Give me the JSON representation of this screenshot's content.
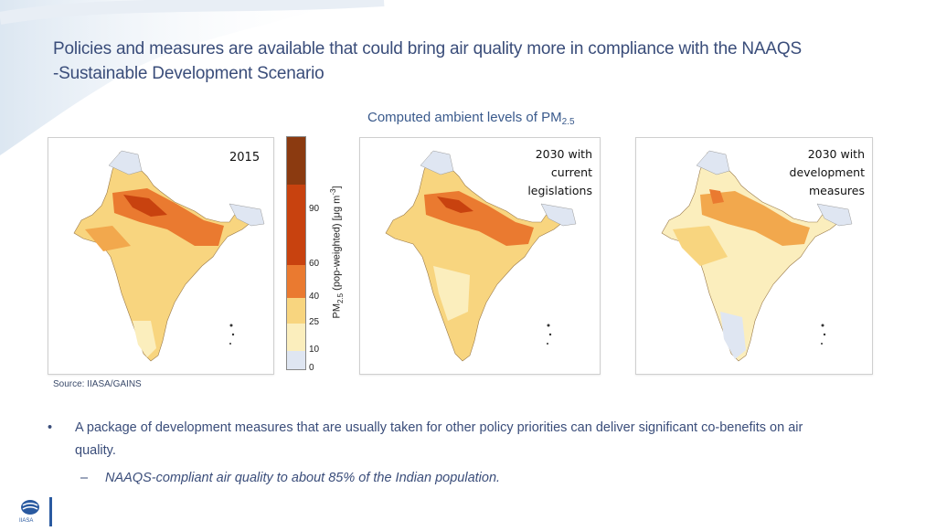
{
  "slide": {
    "title_line1": "Policies and measures are available that could bring air quality more in compliance with the NAAQS",
    "title_line2": "-Sustainable Development Scenario",
    "caption_main": "Computed ambient levels of PM",
    "caption_sub": "2.5",
    "source": "Source: IIASA/GAINS"
  },
  "maps": [
    {
      "label_lines": [
        "2015"
      ]
    },
    {
      "label_lines": [
        "2030 with",
        "current",
        "legislations"
      ]
    },
    {
      "label_lines": [
        "2030 with",
        "development",
        "measures"
      ]
    }
  ],
  "legend": {
    "title_main": "PM",
    "title_sub": "2.5",
    "title_rest": " (pop-weighted) [μg m",
    "title_sup": "-3",
    "title_end": "]",
    "ticks": [
      "90",
      "60",
      "40",
      "25",
      "10",
      "0"
    ],
    "colors": [
      "#8b3a10",
      "#c8420f",
      "#ea7a30",
      "#f2a84d",
      "#f8d57f",
      "#fbeebd",
      "#dfe6f2"
    ]
  },
  "bullets": {
    "bullet_symbol": "•",
    "bullet1": "A package of development measures that are usually taken for other policy priorities can deliver significant co-benefits on air",
    "bullet1_cont": "quality.",
    "dash_symbol": "–",
    "bullet2": "NAAQS-compliant air quality to about 85% of the Indian population."
  },
  "logo": {
    "text": "IIASA"
  }
}
